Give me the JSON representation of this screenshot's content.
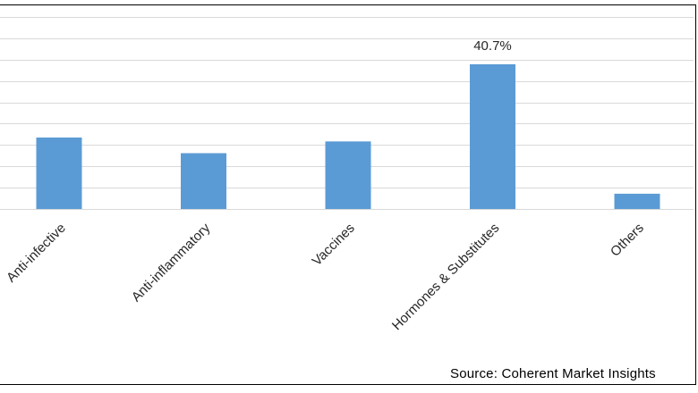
{
  "source": "Source: Coherent Market Insights",
  "colors": {
    "bar": "#5b9bd5",
    "grid": "#d9d9d9",
    "text": "#262626"
  },
  "chart_data": {
    "type": "bar",
    "title": "",
    "xlabel": "",
    "ylabel": "",
    "categories": [
      "Anti-infective",
      "Anti-inflammatory",
      "Vaccines",
      "Hormones & Substitutes",
      "Others"
    ],
    "values": [
      20.1,
      15.7,
      19.0,
      40.7,
      4.3
    ],
    "data_labels": [
      "",
      "",
      "",
      "40.7%",
      ""
    ],
    "ylim": [
      0,
      54
    ],
    "grid": true,
    "legend": "none"
  }
}
